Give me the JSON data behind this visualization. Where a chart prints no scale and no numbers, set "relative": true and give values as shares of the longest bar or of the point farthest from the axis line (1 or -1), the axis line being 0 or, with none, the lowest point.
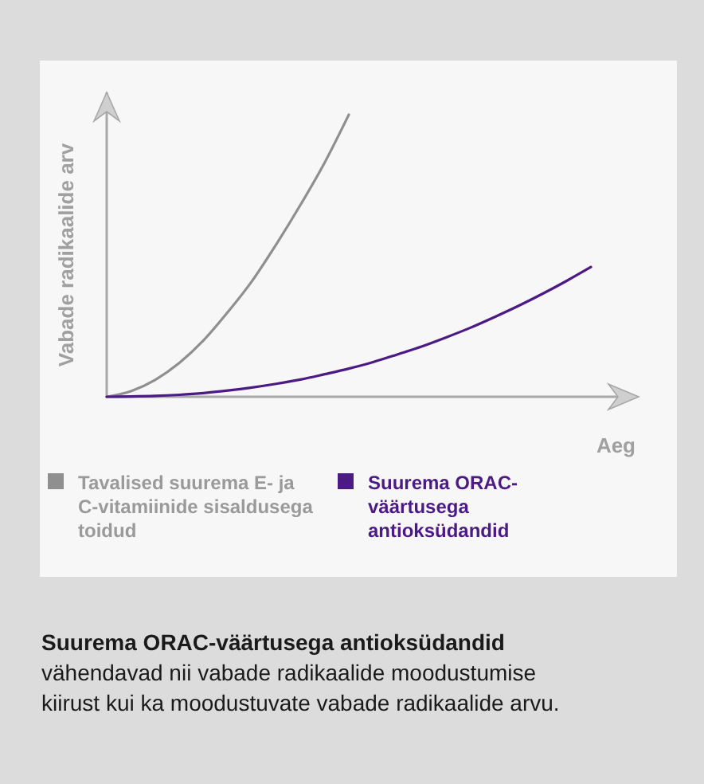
{
  "chart_data": {
    "type": "line",
    "relative": true,
    "xlabel": "Aeg",
    "ylabel": "Vabade radikaalide arv",
    "legend": "bottom",
    "categories": [
      null,
      null,
      null,
      null,
      null,
      null,
      null,
      null,
      null,
      null,
      null,
      null,
      null,
      null,
      null,
      null,
      null,
      null,
      null,
      null,
      null
    ],
    "series": [
      {
        "name": "Tavalised suurema E- ja C-vitamiinide sisaldusega toidud",
        "color": "#8f8f8f",
        "values": [
          0,
          0.02,
          0.06,
          0.12,
          0.2,
          0.3,
          0.41,
          0.54,
          0.68,
          0.83,
          1,
          null,
          null,
          null,
          null,
          null,
          null,
          null,
          null,
          null,
          null
        ]
      },
      {
        "name": "Suurema ORAC-väärtusega antioksüdandid",
        "color": "#4b1a84",
        "values": [
          0,
          0.001,
          0.003,
          0.007,
          0.013,
          0.022,
          0.033,
          0.046,
          0.061,
          0.08,
          0.1,
          0.123,
          0.15,
          0.178,
          0.21,
          0.244,
          0.282,
          0.322,
          0.365,
          0.411,
          0.46
        ]
      }
    ],
    "annotations": [
      "Suurema ORAC-väärtusega antioksüdandid",
      "vähendavad nii vabade radikaalide moodustumise kiirust kui ka moodustuvate vabade radikaalide arvu."
    ]
  }
}
